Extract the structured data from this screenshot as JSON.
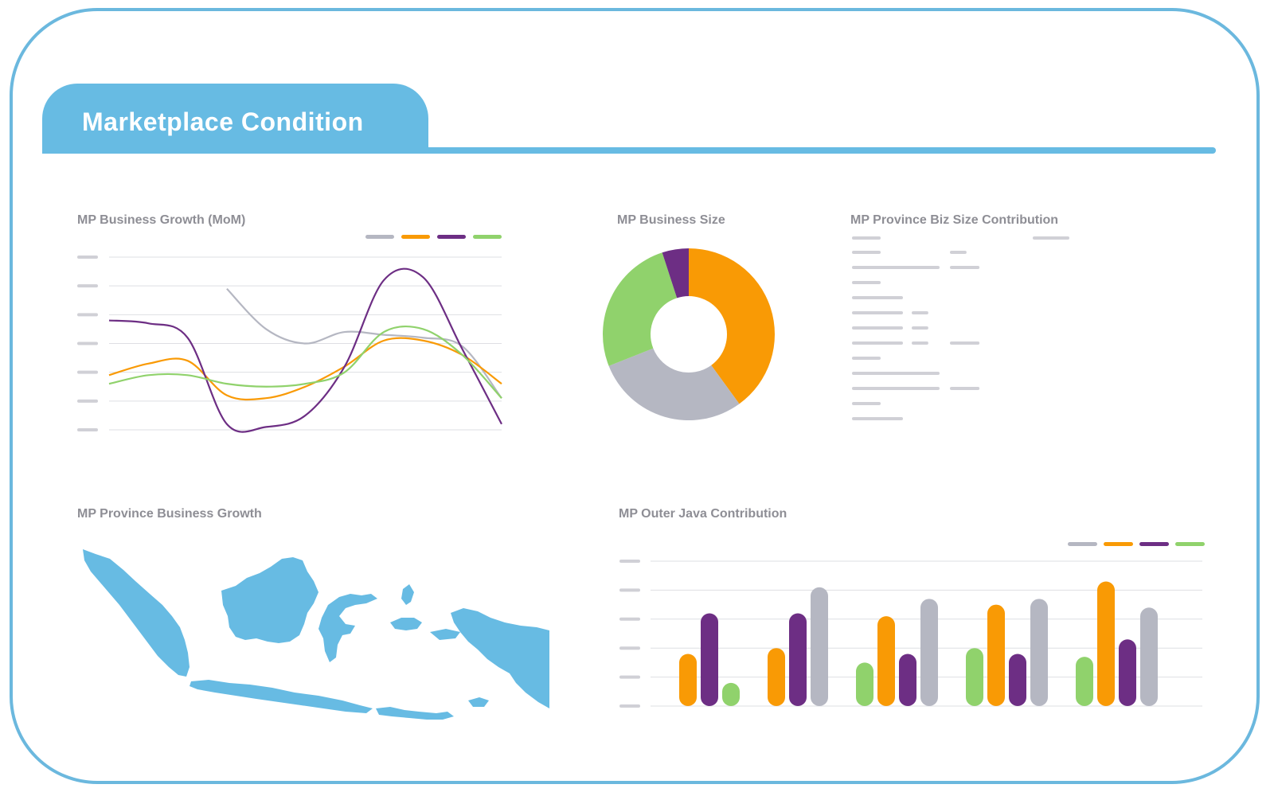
{
  "header": {
    "title": "Marketplace Condition"
  },
  "palette": {
    "gray": "#b5b7c2",
    "orange": "#f99a05",
    "purple": "#6d2e84",
    "green": "#90d26c",
    "blue": "#67bbe3"
  },
  "panels": {
    "growth_title": "MP Business Growth (MoM)",
    "size_title": "MP Business Size",
    "contribution_title": "MP Province Biz Size Contribution",
    "province_title": "MP Province Business Growth",
    "outer_java_title": "MP Outer Java Contribution"
  },
  "chart_data": [
    {
      "id": "growth",
      "type": "line",
      "title": "MP Business Growth (MoM)",
      "x": [
        0,
        1,
        2,
        3,
        4,
        5,
        6,
        7,
        8,
        9,
        10
      ],
      "ylim": [
        0,
        6
      ],
      "grid": true,
      "legend": "top-right",
      "series": [
        {
          "name": "gray",
          "color": "#b5b7c2",
          "values": [
            null,
            null,
            null,
            4.9,
            3.5,
            3.0,
            3.4,
            3.3,
            3.2,
            2.9,
            1.1
          ]
        },
        {
          "name": "orange",
          "color": "#f99a05",
          "values": [
            1.9,
            2.3,
            2.4,
            1.2,
            1.1,
            1.5,
            2.2,
            3.1,
            3.1,
            2.6,
            1.6
          ]
        },
        {
          "name": "purple",
          "color": "#6d2e84",
          "values": [
            3.8,
            3.7,
            3.2,
            0.2,
            0.1,
            0.5,
            2.2,
            5.2,
            5.3,
            2.8,
            0.2
          ]
        },
        {
          "name": "green",
          "color": "#90d26c",
          "values": [
            1.6,
            1.9,
            1.9,
            1.6,
            1.5,
            1.6,
            2.0,
            3.4,
            3.5,
            2.6,
            1.1
          ]
        }
      ]
    },
    {
      "id": "size",
      "type": "pie",
      "title": "MP Business Size",
      "slices": [
        {
          "name": "orange",
          "value": 40,
          "color": "#f99a05"
        },
        {
          "name": "gray",
          "value": 29,
          "color": "#b5b7c2"
        },
        {
          "name": "green",
          "value": 26,
          "color": "#90d26c"
        },
        {
          "name": "purple",
          "value": 5,
          "color": "#6d2e84"
        }
      ]
    },
    {
      "id": "outer_java",
      "type": "bar",
      "title": "MP Outer Java Contribution",
      "ylim": [
        0,
        5
      ],
      "grid": true,
      "legend": "top-right",
      "groups": [
        {
          "bars": [
            {
              "series": "orange",
              "value": 1.8
            },
            {
              "series": "purple",
              "value": 3.2
            },
            {
              "series": "green",
              "value": 0.8
            }
          ]
        },
        {
          "bars": [
            {
              "series": "orange",
              "value": 2.0
            },
            {
              "series": "purple",
              "value": 3.2
            },
            {
              "series": "gray",
              "value": 4.1
            }
          ]
        },
        {
          "bars": [
            {
              "series": "green",
              "value": 1.5
            },
            {
              "series": "orange",
              "value": 3.1
            },
            {
              "series": "purple",
              "value": 1.8
            },
            {
              "series": "gray",
              "value": 3.7
            }
          ]
        },
        {
          "bars": [
            {
              "series": "green",
              "value": 2.0
            },
            {
              "series": "orange",
              "value": 3.5
            },
            {
              "series": "purple",
              "value": 1.8
            },
            {
              "series": "gray",
              "value": 3.7
            }
          ]
        },
        {
          "bars": [
            {
              "series": "green",
              "value": 1.7
            },
            {
              "series": "orange",
              "value": 4.3
            },
            {
              "series": "purple",
              "value": 2.3
            },
            {
              "series": "gray",
              "value": 3.4
            }
          ]
        }
      ]
    },
    {
      "id": "contribution",
      "type": "table",
      "title": "MP Province Biz Size Contribution",
      "note": "text redacted as gray placeholder bars",
      "rows": [
        [
          1,
          0,
          1
        ],
        [
          3,
          2,
          0
        ],
        [
          1,
          0,
          0
        ],
        [
          2,
          0,
          0
        ],
        [
          2,
          1,
          0
        ],
        [
          2,
          1,
          0
        ],
        [
          2,
          1,
          2
        ],
        [
          1,
          0,
          0
        ],
        [
          3,
          0,
          0
        ],
        [
          3,
          2,
          0
        ],
        [
          1,
          0,
          0
        ],
        [
          2,
          0,
          0
        ]
      ]
    }
  ]
}
